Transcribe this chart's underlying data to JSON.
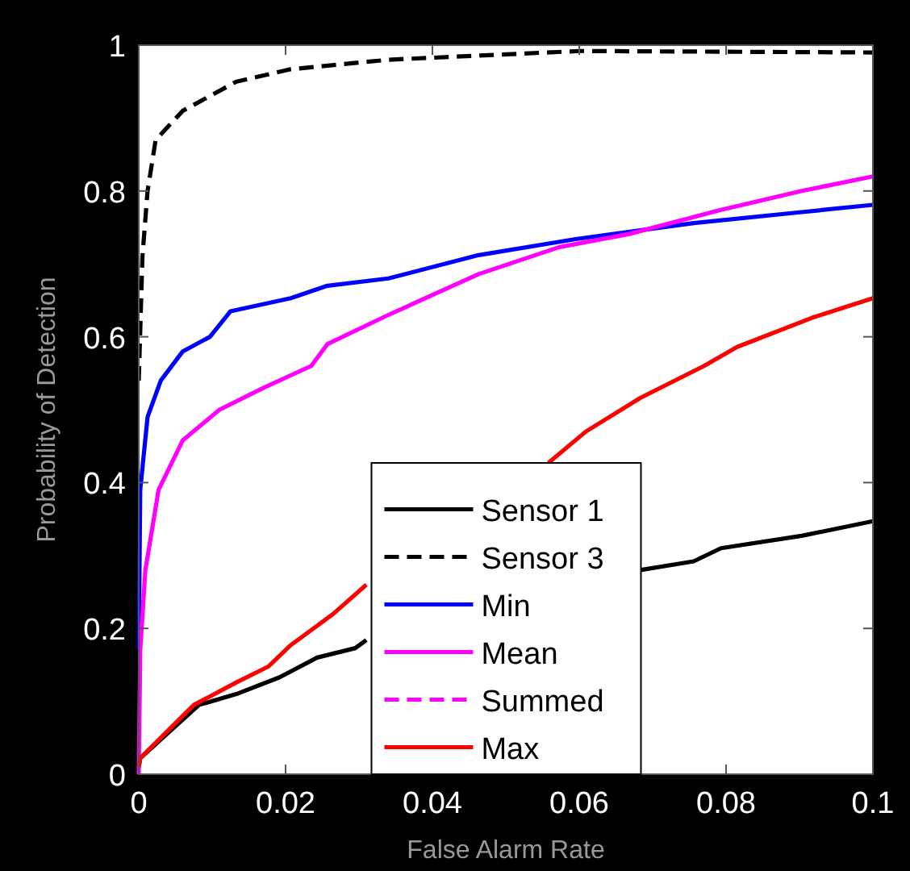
{
  "chart_data": {
    "type": "line",
    "xlabel": "False Alarm Rate",
    "ylabel": "Probability of Detection",
    "xlim": [
      0,
      0.1
    ],
    "ylim": [
      0,
      1
    ],
    "xticks": [
      0,
      0.02,
      0.04,
      0.06,
      0.08,
      0.1
    ],
    "yticks": [
      0,
      0.2,
      0.4,
      0.6,
      0.8,
      1
    ],
    "grid": false,
    "legend": "bottom",
    "series": [
      {
        "name": "Sensor 1",
        "color": "#000000",
        "line_style": "solid",
        "x": [
          0,
          0.0002,
          0.0082,
          0.0133,
          0.0192,
          0.0243,
          0.0295,
          0.031,
          0.045,
          0.0683,
          0.0756,
          0.0793,
          0.0903,
          0.1
        ],
        "values": [
          0.01,
          0.022,
          0.095,
          0.11,
          0.133,
          0.16,
          0.173,
          0.184,
          null,
          0.28,
          0.292,
          0.31,
          0.327,
          0.347
        ]
      },
      {
        "name": "Sensor 3",
        "color": "#000000",
        "line_style": "dashed",
        "x": [
          0,
          0.0005,
          0.0012,
          0.0023,
          0.006,
          0.0133,
          0.0207,
          0.034,
          0.06,
          0.1
        ],
        "values": [
          0.54,
          0.71,
          0.8,
          0.87,
          0.91,
          0.95,
          0.967,
          0.98,
          0.992,
          0.99
        ]
      },
      {
        "name": "Min",
        "color": "#0000ff",
        "line_style": "solid",
        "x": [
          0,
          0.0002,
          0.0012,
          0.003,
          0.006,
          0.0097,
          0.0125,
          0.0207,
          0.0257,
          0.034,
          0.0463,
          0.0595,
          0.0756,
          0.0903,
          0.1
        ],
        "values": [
          0.17,
          0.39,
          0.49,
          0.54,
          0.58,
          0.6,
          0.635,
          0.653,
          0.67,
          0.68,
          0.712,
          0.734,
          0.756,
          0.771,
          0.781
        ]
      },
      {
        "name": "Mean",
        "color": "#ff00ff",
        "line_style": "solid",
        "x": [
          0,
          0.0002,
          0.0009,
          0.0027,
          0.006,
          0.011,
          0.017,
          0.0235,
          0.0257,
          0.034,
          0.0463,
          0.0573,
          0.0668,
          0.0793,
          0.0903,
          0.1
        ],
        "values": [
          0,
          0.17,
          0.28,
          0.39,
          0.458,
          0.5,
          0.53,
          0.56,
          0.59,
          0.63,
          0.686,
          0.723,
          0.741,
          0.774,
          0.8,
          0.82
        ]
      },
      {
        "name": "Summed",
        "color": "#ff00ff",
        "line_style": "dashed"
      },
      {
        "name": "Max",
        "color": "#ff0000",
        "line_style": "solid",
        "x": [
          0,
          0.0002,
          0.0075,
          0.0133,
          0.0177,
          0.0207,
          0.0265,
          0.031,
          0.045,
          0.0558,
          0.0609,
          0.0683,
          0.077,
          0.0815,
          0.0917,
          0.1
        ],
        "values": [
          0.01,
          0.022,
          0.095,
          0.126,
          0.148,
          0.177,
          0.22,
          0.26,
          null,
          0.427,
          0.47,
          0.516,
          0.56,
          0.586,
          0.626,
          0.653
        ]
      }
    ]
  }
}
